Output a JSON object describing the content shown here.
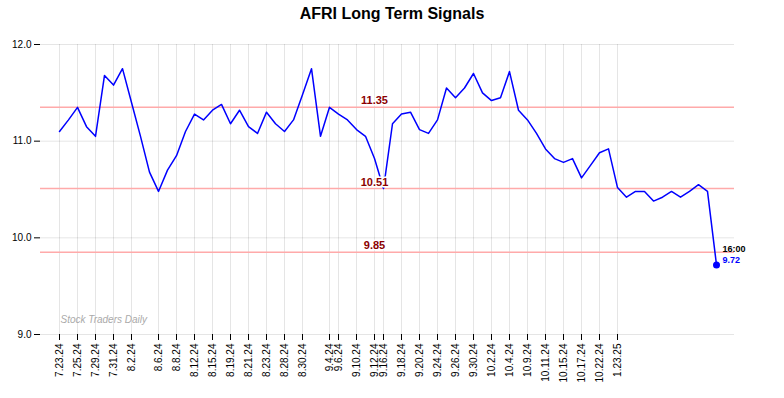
{
  "chart_data": {
    "type": "line",
    "title": "AFRI Long Term Signals",
    "categories": [
      "7.23.24",
      null,
      "7.25.24",
      null,
      "7.29.24",
      null,
      "7.31.24",
      null,
      "8.2.24",
      null,
      null,
      "8.6.24",
      null,
      "8.8.24",
      null,
      "8.12.24",
      null,
      "8.15.24",
      null,
      "8.19.24",
      null,
      "8.21.24",
      null,
      "8.23.24",
      null,
      "8.28.24",
      null,
      "8.30.24",
      null,
      null,
      "9.4.24",
      "9.6.24",
      null,
      "9.10.24",
      null,
      "9.12.24",
      "9.16.24",
      null,
      "9.18.24",
      null,
      "9.20.24",
      null,
      "9.24.24",
      null,
      "9.26.24",
      null,
      "9.30.24",
      null,
      "10.2.24",
      null,
      "10.4.24",
      null,
      "10.9.24",
      null,
      "10.11.24",
      null,
      "10.15.24",
      null,
      "10.17.24",
      null,
      "10.22.24",
      null,
      "1.23.25",
      null,
      null,
      null,
      null,
      null,
      null,
      null,
      null,
      null,
      null,
      null
    ],
    "values": [
      11.1,
      11.22,
      11.35,
      11.15,
      11.05,
      11.68,
      11.58,
      11.75,
      11.4,
      11.05,
      10.68,
      10.48,
      10.7,
      10.85,
      11.1,
      11.28,
      11.22,
      11.32,
      11.38,
      11.18,
      11.32,
      11.15,
      11.08,
      11.3,
      11.18,
      11.1,
      11.22,
      11.48,
      11.75,
      11.05,
      11.35,
      11.28,
      11.22,
      11.12,
      11.05,
      10.82,
      10.51,
      11.18,
      11.28,
      11.3,
      11.12,
      11.08,
      11.22,
      11.55,
      11.45,
      11.55,
      11.7,
      11.5,
      11.42,
      11.45,
      11.72,
      11.32,
      11.22,
      11.08,
      10.92,
      10.82,
      10.78,
      10.82,
      10.62,
      10.75,
      10.88,
      10.92,
      10.52,
      10.42,
      10.48,
      10.48,
      10.38,
      10.42,
      10.48,
      10.42,
      10.48,
      10.55,
      10.48,
      9.72
    ],
    "color": "blue",
    "ylim": [
      9.0,
      12.0
    ],
    "yticks": [
      9,
      10,
      11,
      12
    ],
    "grid": true,
    "reference_lines": [
      {
        "value": 11.35,
        "label": "11.35",
        "color": "#ffaaaa",
        "label_color": "#8b0000"
      },
      {
        "value": 10.51,
        "label": "10.51",
        "color": "#ffaaaa",
        "label_color": "#8b0000"
      },
      {
        "value": 9.85,
        "label": "9.85",
        "color": "#ffaaaa",
        "label_color": "#8b0000"
      }
    ],
    "last_point_labels": [
      {
        "text": "16:00",
        "color": "black"
      },
      {
        "text": "9.72",
        "color": "blue"
      }
    ],
    "watermark": {
      "text": "Stock Traders Daily",
      "color": "#aaaaaa"
    }
  }
}
